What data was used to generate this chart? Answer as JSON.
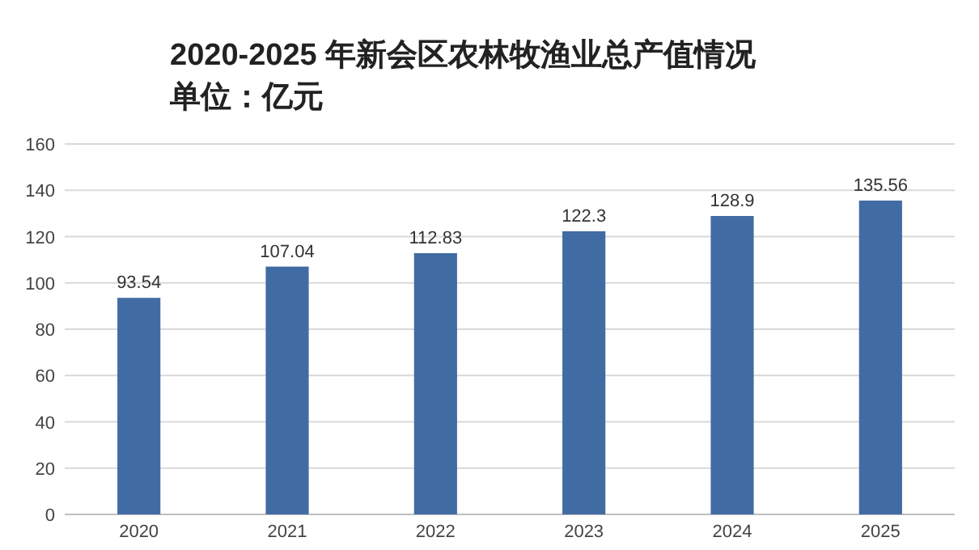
{
  "chart_data": {
    "type": "bar",
    "title": "2020-2025 年新会区农林牧渔业总产值情况",
    "subtitle": "单位：亿元",
    "categories": [
      "2020",
      "2021",
      "2022",
      "2023",
      "2024",
      "2025"
    ],
    "values": [
      93.54,
      107.04,
      112.83,
      122.3,
      128.9,
      135.56
    ],
    "color": "#416ca3",
    "ylim": [
      0,
      160
    ],
    "yticks": [
      0,
      20,
      40,
      60,
      80,
      100,
      120,
      140,
      160
    ],
    "grid": "y",
    "data_labels": true
  }
}
